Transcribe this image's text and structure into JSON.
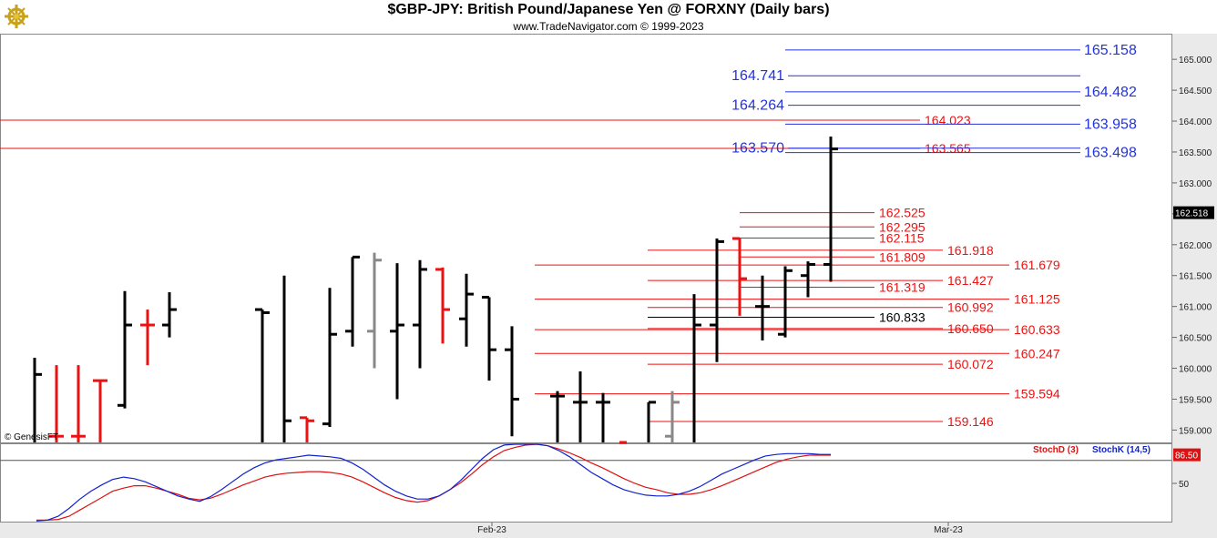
{
  "header": {
    "title": "$GBP-JPY:  British Pound/Japanese Yen @ FORXNY  (Daily bars)",
    "subtitle": "www.TradeNavigator.com © 1999-2023",
    "logo_icon": "gold-ship-wheel-logo"
  },
  "watermark": "© GenesisFT",
  "chart_data": [
    {
      "type": "ohlc",
      "panel": "price",
      "ylim": [
        158.8,
        165.4
      ],
      "y_ticks": [
        "159.000",
        "159.500",
        "160.000",
        "160.500",
        "161.000",
        "161.500",
        "162.000",
        "162.500",
        "163.000",
        "163.500",
        "164.000",
        "164.500",
        "165.000"
      ],
      "last_price": "162.518",
      "bar_colors": {
        "black": "#000000",
        "red": "#ee1111",
        "gray": "#888888"
      },
      "bars": [
        {
          "o": 158.7,
          "h": 160.17,
          "l": 158.7,
          "c": 159.9,
          "color": "black"
        },
        {
          "o": 158.9,
          "h": 160.05,
          "l": 158.7,
          "c": 158.9,
          "color": "red"
        },
        {
          "o": 158.9,
          "h": 160.05,
          "l": 158.7,
          "c": 158.9,
          "color": "red"
        },
        {
          "o": 159.8,
          "h": 159.8,
          "l": 158.7,
          "c": 159.8,
          "color": "red"
        },
        {
          "o": 159.4,
          "h": 161.25,
          "l": 159.35,
          "c": 160.7,
          "color": "black"
        },
        {
          "o": 160.7,
          "h": 160.95,
          "l": 160.05,
          "c": 160.7,
          "color": "red"
        },
        {
          "o": 160.7,
          "h": 161.23,
          "l": 160.5,
          "c": 160.95,
          "color": "black"
        },
        {
          "o": 160.95,
          "h": 160.95,
          "l": 158.7,
          "c": 160.9,
          "color": "black"
        },
        {
          "o": 158.7,
          "h": 161.5,
          "l": 158.7,
          "c": 159.15,
          "color": "black"
        },
        {
          "o": 159.2,
          "h": 159.2,
          "l": 158.7,
          "c": 159.15,
          "color": "red"
        },
        {
          "o": 159.1,
          "h": 161.3,
          "l": 159.05,
          "c": 160.55,
          "color": "black"
        },
        {
          "o": 160.6,
          "h": 161.8,
          "l": 160.35,
          "c": 161.8,
          "color": "black"
        },
        {
          "o": 160.6,
          "h": 161.87,
          "l": 160.0,
          "c": 161.75,
          "color": "gray"
        },
        {
          "o": 160.6,
          "h": 161.7,
          "l": 159.5,
          "c": 160.7,
          "color": "black"
        },
        {
          "o": 160.7,
          "h": 161.75,
          "l": 160.0,
          "c": 161.6,
          "color": "black"
        },
        {
          "o": 161.6,
          "h": 161.63,
          "l": 160.4,
          "c": 160.95,
          "color": "red"
        },
        {
          "o": 160.8,
          "h": 161.53,
          "l": 160.35,
          "c": 161.2,
          "color": "black"
        },
        {
          "o": 161.15,
          "h": 161.15,
          "l": 159.8,
          "c": 160.3,
          "color": "black"
        },
        {
          "o": 160.3,
          "h": 160.68,
          "l": 158.9,
          "c": 159.5,
          "color": "black"
        },
        {
          "o": 159.55,
          "h": 159.63,
          "l": 158.7,
          "c": 159.55,
          "color": "black"
        },
        {
          "o": 159.45,
          "h": 159.95,
          "l": 158.7,
          "c": 159.45,
          "color": "black"
        },
        {
          "o": 159.45,
          "h": 159.6,
          "l": 158.7,
          "c": 159.45,
          "color": "black"
        },
        {
          "o": 158.8,
          "h": 158.8,
          "l": 158.7,
          "c": 158.7,
          "color": "red"
        },
        {
          "o": 158.7,
          "h": 159.45,
          "l": 158.7,
          "c": 159.45,
          "color": "black"
        },
        {
          "o": 158.9,
          "h": 159.63,
          "l": 158.7,
          "c": 159.45,
          "color": "gray"
        },
        {
          "o": 158.7,
          "h": 161.2,
          "l": 158.7,
          "c": 160.7,
          "color": "black"
        },
        {
          "o": 160.7,
          "h": 162.1,
          "l": 160.1,
          "c": 162.05,
          "color": "black"
        },
        {
          "o": 162.1,
          "h": 162.1,
          "l": 160.85,
          "c": 161.45,
          "color": "red"
        },
        {
          "o": 161.0,
          "h": 161.5,
          "l": 160.45,
          "c": 161.0,
          "color": "black"
        },
        {
          "o": 160.55,
          "h": 161.65,
          "l": 160.5,
          "c": 161.58,
          "color": "black"
        },
        {
          "o": 161.5,
          "h": 161.73,
          "l": 161.15,
          "c": 161.68,
          "color": "black"
        },
        {
          "o": 161.68,
          "h": 163.75,
          "l": 161.4,
          "c": 163.55,
          "color": "black"
        },
        {
          "o": 163.55,
          "h": 163.55,
          "l": 162.4,
          "c": 162.5,
          "color": "red"
        }
      ],
      "levels_blue": [
        {
          "value": 165.158,
          "label": "165.158",
          "side": "right"
        },
        {
          "value": 164.741,
          "label": "164.741",
          "side": "left"
        },
        {
          "value": 164.482,
          "label": "164.482",
          "side": "right"
        },
        {
          "value": 164.264,
          "label": "164.264",
          "side": "left"
        },
        {
          "value": 163.958,
          "label": "163.958",
          "side": "right"
        },
        {
          "value": 163.57,
          "label": "163.570",
          "side": "left"
        },
        {
          "value": 163.498,
          "label": "163.498",
          "side": "right"
        }
      ],
      "levels_red": [
        {
          "value": 164.023,
          "label": "164.023",
          "span": "full"
        },
        {
          "value": 163.565,
          "label": "163.565",
          "span": "full"
        },
        {
          "value": 162.525,
          "label": "162.525",
          "span": "short"
        },
        {
          "value": 162.295,
          "label": "162.295",
          "span": "short"
        },
        {
          "value": 162.115,
          "label": "162.115",
          "span": "short"
        },
        {
          "value": 161.918,
          "label": "161.918",
          "span": "mid"
        },
        {
          "value": 161.809,
          "label": "161.809",
          "span": "short"
        },
        {
          "value": 161.679,
          "label": "161.679",
          "span": "long"
        },
        {
          "value": 161.427,
          "label": "161.427",
          "span": "mid"
        },
        {
          "value": 161.319,
          "label": "161.319",
          "span": "short"
        },
        {
          "value": 161.125,
          "label": "161.125",
          "span": "long"
        },
        {
          "value": 160.992,
          "label": "160.992",
          "span": "mid"
        },
        {
          "value": 160.65,
          "label": "160.650",
          "span": "mid"
        },
        {
          "value": 160.633,
          "label": "160.633",
          "span": "long"
        },
        {
          "value": 160.247,
          "label": "160.247",
          "span": "long"
        },
        {
          "value": 160.072,
          "label": "160.072",
          "span": "mid"
        },
        {
          "value": 159.594,
          "label": "159.594",
          "span": "long"
        },
        {
          "value": 159.146,
          "label": "159.146",
          "span": "mid"
        }
      ],
      "level_black": {
        "value": 160.833,
        "label": "160.833"
      },
      "level_colors": {
        "blue": "#2233dd",
        "red": "#ee1111",
        "black": "#000000"
      }
    },
    {
      "type": "line",
      "panel": "stochastic",
      "ylim": [
        0,
        100
      ],
      "y_ticks": [
        "50"
      ],
      "reference_line": 80,
      "current_value": "86.50",
      "series": [
        {
          "name": "StochD (3)",
          "color": "#dd1111",
          "values": [
            3,
            3,
            4,
            8,
            16,
            24,
            32,
            40,
            44,
            47,
            47,
            44,
            40,
            36,
            31,
            29,
            31,
            36,
            42,
            48,
            53,
            58,
            61,
            63,
            64,
            65,
            65,
            64,
            62,
            58,
            52,
            45,
            38,
            32,
            28,
            26,
            28,
            34,
            42,
            51,
            62,
            74,
            84,
            92,
            96,
            99,
            100,
            98,
            94,
            89,
            83,
            76,
            70,
            63,
            56,
            50,
            45,
            42,
            38,
            36,
            36,
            38,
            42,
            47,
            53,
            59,
            65,
            71,
            77,
            81,
            84,
            86,
            86,
            86
          ]
        },
        {
          "name": "StochK (14,5)",
          "color": "#1122cc",
          "values": [
            2,
            3,
            8,
            18,
            30,
            40,
            48,
            55,
            58,
            56,
            52,
            46,
            40,
            34,
            30,
            27,
            33,
            42,
            52,
            62,
            70,
            76,
            80,
            82,
            84,
            86,
            85,
            84,
            82,
            76,
            68,
            58,
            48,
            40,
            34,
            30,
            30,
            34,
            42,
            54,
            68,
            82,
            93,
            99,
            100,
            100,
            100,
            98,
            92,
            84,
            74,
            64,
            56,
            48,
            42,
            38,
            35,
            34,
            34,
            36,
            40,
            46,
            54,
            62,
            68,
            74,
            80,
            85,
            87,
            88,
            88,
            88,
            87,
            87
          ]
        }
      ]
    }
  ],
  "x_axis": {
    "labels": [
      "Feb-23",
      "Mar-23"
    ]
  }
}
